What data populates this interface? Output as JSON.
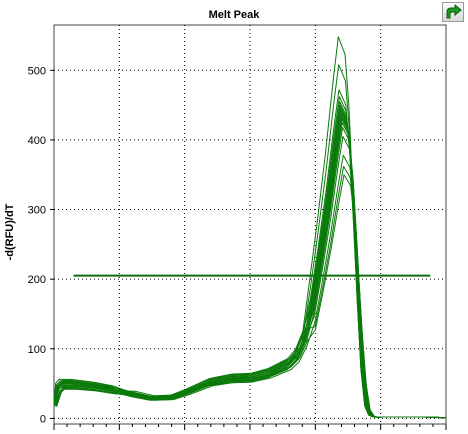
{
  "chart_data": {
    "type": "line",
    "title": "Melt Peak",
    "xlabel": "",
    "ylabel": "-d(RFU)/dT",
    "xlim": [
      0,
      1
    ],
    "ylim": [
      -8,
      565
    ],
    "yticks": [
      0,
      100,
      200,
      300,
      400,
      500
    ],
    "grid": true,
    "threshold": 205,
    "base_curve": {
      "x": [
        0,
        0.012,
        0.02,
        0.03,
        0.05,
        0.1,
        0.15,
        0.2,
        0.25,
        0.3,
        0.34,
        0.4,
        0.45,
        0.5,
        0.55,
        0.6,
        0.62,
        0.64,
        0.66,
        0.68,
        0.7,
        0.72,
        0.733,
        0.75,
        0.76,
        0.77,
        0.78,
        0.79,
        0.8,
        0.81,
        0.82,
        0.83,
        0.85,
        0.88,
        0.9,
        0.95,
        1.0
      ],
      "y": [
        20,
        45,
        50,
        50,
        50,
        47,
        42,
        35,
        29,
        30,
        38,
        52,
        57,
        58,
        65,
        78,
        90,
        115,
        160,
        230,
        305,
        390,
        440,
        420,
        360,
        260,
        150,
        60,
        15,
        4,
        2,
        2,
        2,
        2,
        2,
        2,
        1
      ]
    },
    "series": [
      {
        "peak": 548,
        "shoulder": 1.12,
        "dip": 1.0
      },
      {
        "peak": 508,
        "shoulder": 1.05,
        "dip": 0.95
      },
      {
        "peak": 472,
        "shoulder": 1.0,
        "dip": 1.05
      },
      {
        "peak": 462,
        "shoulder": 0.95,
        "dip": 0.9
      },
      {
        "peak": 455,
        "shoulder": 1.08,
        "dip": 1.1
      },
      {
        "peak": 450,
        "shoulder": 0.9,
        "dip": 1.0
      },
      {
        "peak": 446,
        "shoulder": 1.02,
        "dip": 0.92
      },
      {
        "peak": 442,
        "shoulder": 0.97,
        "dip": 1.08
      },
      {
        "peak": 438,
        "shoulder": 1.06,
        "dip": 0.98
      },
      {
        "peak": 434,
        "shoulder": 0.93,
        "dip": 1.03
      },
      {
        "peak": 430,
        "shoulder": 1.0,
        "dip": 0.96
      },
      {
        "peak": 425,
        "shoulder": 1.04,
        "dip": 1.06
      },
      {
        "peak": 418,
        "shoulder": 0.88,
        "dip": 0.94
      },
      {
        "peak": 405,
        "shoulder": 1.1,
        "dip": 1.02
      },
      {
        "peak": 378,
        "shoulder": 0.86,
        "dip": 0.9
      },
      {
        "peak": 362,
        "shoulder": 0.92,
        "dip": 1.12
      },
      {
        "peak": 350,
        "shoulder": 0.84,
        "dip": 0.97
      }
    ],
    "colors": {
      "line": "#0a7a0a",
      "threshold": "#0a6e0a",
      "grid": "#000000",
      "axis": "#444444"
    }
  },
  "toolbar": {
    "icon": "green-arrow-icon"
  }
}
